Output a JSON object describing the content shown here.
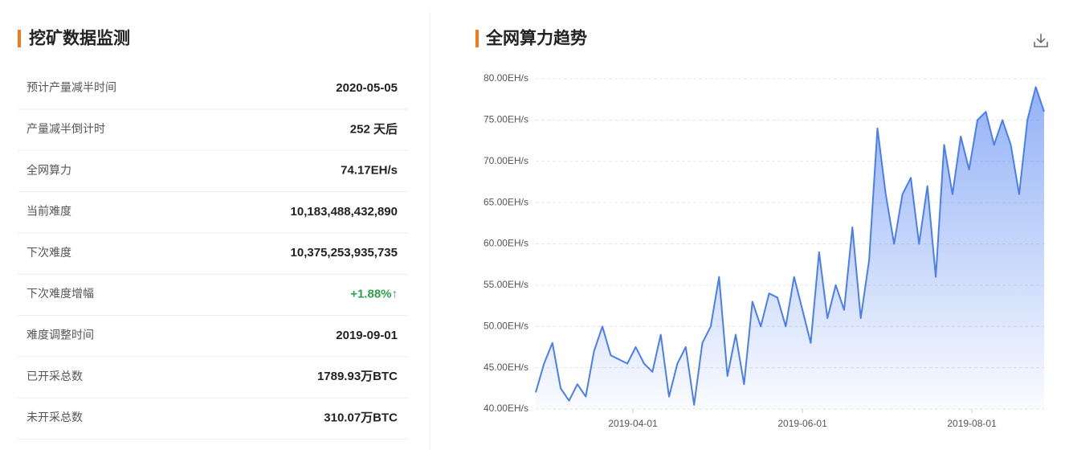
{
  "left_panel": {
    "title": "挖矿数据监测",
    "rows": [
      [
        "预计产量减半时间",
        "2020-05-05"
      ],
      [
        "产量减半倒计时",
        "252 天后"
      ],
      [
        "全网算力",
        "74.17EH/s"
      ],
      [
        "当前难度",
        "10,183,488,432,890"
      ],
      [
        "下次难度",
        "10,375,253,935,735"
      ],
      [
        "下次难度增幅",
        "+1.88%↑"
      ],
      [
        "难度调整时间",
        "2019-09-01"
      ],
      [
        "已开采总数",
        "1789.93万BTC"
      ],
      [
        "未开采总数",
        "310.07万BTC"
      ]
    ]
  },
  "chart_data": {
    "type": "area",
    "title": "全网算力趋势",
    "x": [
      "2019-02-25",
      "2019-02-28",
      "2019-03-03",
      "2019-03-06",
      "2019-03-09",
      "2019-03-12",
      "2019-03-15",
      "2019-03-18",
      "2019-03-21",
      "2019-03-24",
      "2019-03-27",
      "2019-03-30",
      "2019-04-02",
      "2019-04-05",
      "2019-04-08",
      "2019-04-11",
      "2019-04-14",
      "2019-04-17",
      "2019-04-20",
      "2019-04-23",
      "2019-04-26",
      "2019-04-29",
      "2019-05-02",
      "2019-05-05",
      "2019-05-08",
      "2019-05-11",
      "2019-05-14",
      "2019-05-17",
      "2019-05-20",
      "2019-05-23",
      "2019-05-26",
      "2019-05-29",
      "2019-06-01",
      "2019-06-04",
      "2019-06-07",
      "2019-06-10",
      "2019-06-13",
      "2019-06-16",
      "2019-06-19",
      "2019-06-22",
      "2019-06-25",
      "2019-06-28",
      "2019-07-01",
      "2019-07-04",
      "2019-07-07",
      "2019-07-10",
      "2019-07-13",
      "2019-07-16",
      "2019-07-19",
      "2019-07-22",
      "2019-07-25",
      "2019-07-28",
      "2019-07-31",
      "2019-08-03",
      "2019-08-06",
      "2019-08-09",
      "2019-08-12",
      "2019-08-15",
      "2019-08-18",
      "2019-08-21",
      "2019-08-24",
      "2019-08-27"
    ],
    "series": [
      {
        "color": "#4a7ef0",
        "values": [
          42,
          45.5,
          48,
          42.5,
          41,
          43,
          41.5,
          47,
          50,
          46.5,
          46,
          45.5,
          47.5,
          45.5,
          44.5,
          49,
          41.5,
          45.5,
          47.5,
          40.5,
          48,
          50,
          56,
          44,
          49,
          43,
          53,
          50,
          54,
          53.5,
          50,
          56,
          52,
          48,
          59,
          51,
          55,
          52,
          62,
          51,
          58,
          74,
          66,
          60,
          66,
          68,
          60,
          67,
          56,
          72,
          66,
          73,
          69,
          75,
          76,
          72,
          75,
          72,
          66,
          75,
          79,
          76
        ]
      }
    ],
    "xlim": [
      "2019-02-25",
      "2019-08-27"
    ],
    "xticks": [
      "2019-04-01",
      "2019-06-01",
      "2019-08-01"
    ],
    "ylim": [
      40,
      80
    ],
    "yticks": [
      {
        "value": 40,
        "label": "40.00EH/s"
      },
      {
        "value": 45,
        "label": "45.00EH/s"
      },
      {
        "value": 50,
        "label": "50.00EH/s"
      },
      {
        "value": 55,
        "label": "55.00EH/s"
      },
      {
        "value": 60,
        "label": "60.00EH/s"
      },
      {
        "value": 65,
        "label": "65.00EH/s"
      },
      {
        "value": 70,
        "label": "70.00EH/s"
      },
      {
        "value": 75,
        "label": "75.00EH/s"
      },
      {
        "value": 80,
        "label": "80.00EH/s"
      }
    ],
    "grid": true
  }
}
